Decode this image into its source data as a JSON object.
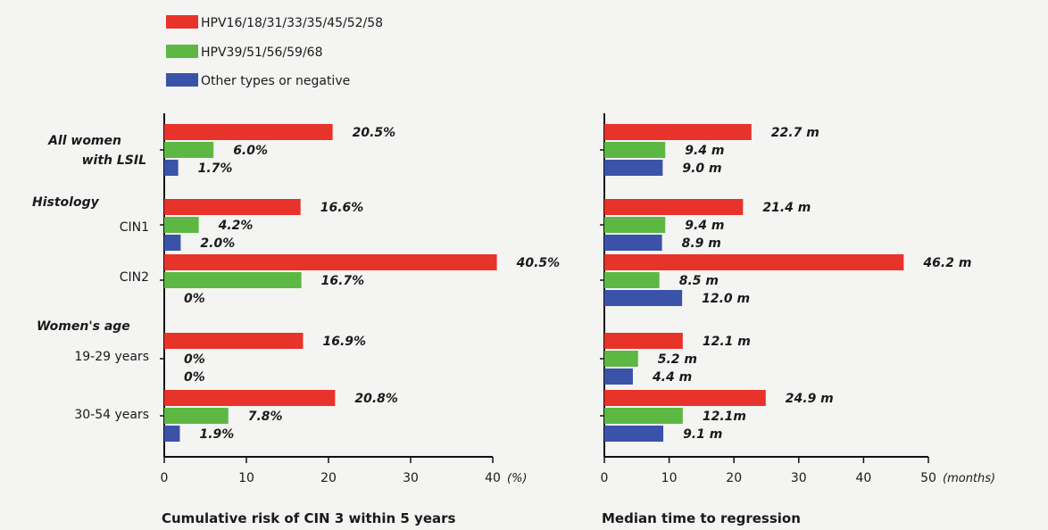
{
  "chart_data": {
    "type": "bar",
    "orientation": "horizontal",
    "colors": [
      "#e8332a",
      "#5cb843",
      "#3a52a8"
    ],
    "legend": {
      "placement": "top-left",
      "entries": [
        "HPV16/18/31/33/35/45/52/58",
        "HPV39/51/56/59/68",
        "Other types or negative"
      ]
    },
    "groups": [
      {
        "label": "All women\nwith LSIL",
        "rows": [
          {
            "label": "",
            "index": 0
          }
        ]
      },
      {
        "label": "Histology",
        "rows": [
          {
            "label": "CIN1",
            "index": 1
          },
          {
            "label": "CIN2",
            "index": 2
          }
        ]
      },
      {
        "label": "Women's age",
        "rows": [
          {
            "label": "19-29 years",
            "index": 3
          },
          {
            "label": "30-54 years",
            "index": 4
          }
        ]
      }
    ],
    "panels": [
      {
        "xlabel": "Cumulative risk of CIN 3 within 5 years",
        "unit": "(%)",
        "xlim": [
          0,
          40
        ],
        "ticks": [
          "0",
          "10",
          "20",
          "30",
          "40"
        ],
        "series": [
          {
            "name": "HPV16/18/31/33/35/45/52/58",
            "values": [
              20.5,
              16.6,
              40.5,
              16.9,
              20.8
            ],
            "labels": [
              "20.5%",
              "16.6%",
              "40.5%",
              "16.9%",
              "20.8%"
            ]
          },
          {
            "name": "HPV39/51/56/59/68",
            "values": [
              6.0,
              4.2,
              16.7,
              0,
              7.8
            ],
            "labels": [
              "6.0%",
              "4.2%",
              "16.7%",
              "0%",
              "7.8%"
            ]
          },
          {
            "name": "Other types or negative",
            "values": [
              1.7,
              2.0,
              0,
              0,
              1.9
            ],
            "labels": [
              "1.7%",
              "2.0%",
              "0%",
              "0%",
              "1.9%"
            ]
          }
        ]
      },
      {
        "xlabel": "Median time to regression",
        "unit": "(months)",
        "xlim": [
          0,
          50
        ],
        "ticks": [
          "0",
          "10",
          "20",
          "30",
          "40",
          "50"
        ],
        "series": [
          {
            "name": "HPV16/18/31/33/35/45/52/58",
            "values": [
              22.7,
              21.4,
              46.2,
              12.1,
              24.9
            ],
            "labels": [
              "22.7 m",
              "21.4 m",
              "46.2 m",
              "12.1 m",
              "24.9 m"
            ]
          },
          {
            "name": "HPV39/51/56/59/68",
            "values": [
              9.4,
              9.4,
              8.5,
              5.2,
              12.1
            ],
            "labels": [
              "9.4 m",
              "9.4 m",
              "8.5 m",
              "5.2 m",
              "12.1m"
            ]
          },
          {
            "name": "Other types or negative",
            "values": [
              9.0,
              8.9,
              12.0,
              4.4,
              9.1
            ],
            "labels": [
              "9.0 m",
              "8.9 m",
              "12.0 m",
              "4.4 m",
              "9.1 m"
            ]
          }
        ]
      }
    ]
  }
}
